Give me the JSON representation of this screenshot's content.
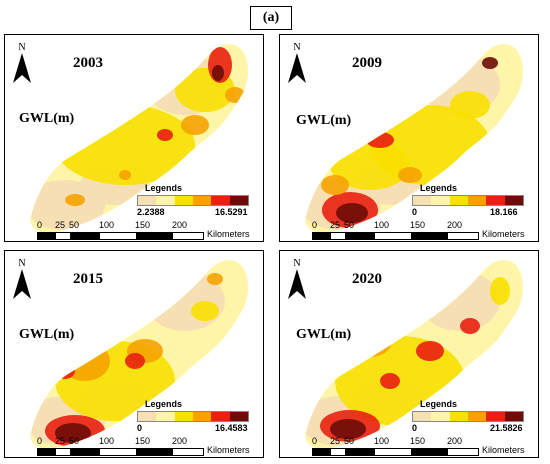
{
  "figure_label": "(a)",
  "north_label": "N",
  "gwl_label": "GWL(m)",
  "legend_title": "Legends",
  "scale_ticks": [
    "0",
    "25",
    "50",
    "100",
    "150",
    "200"
  ],
  "scale_unit": "Kilometers",
  "legend_colors": [
    "#f7dfb4",
    "#fff5a8",
    "#f8e000",
    "#f4a300",
    "#e82010",
    "#6d0c08"
  ],
  "panels": [
    {
      "year": "2003",
      "min": "2.2388",
      "max": "16.5291"
    },
    {
      "year": "2009",
      "min": "0",
      "max": "18.166"
    },
    {
      "year": "2015",
      "min": "0",
      "max": "16.4583"
    },
    {
      "year": "2020",
      "min": "0",
      "max": "21.5826"
    }
  ]
}
